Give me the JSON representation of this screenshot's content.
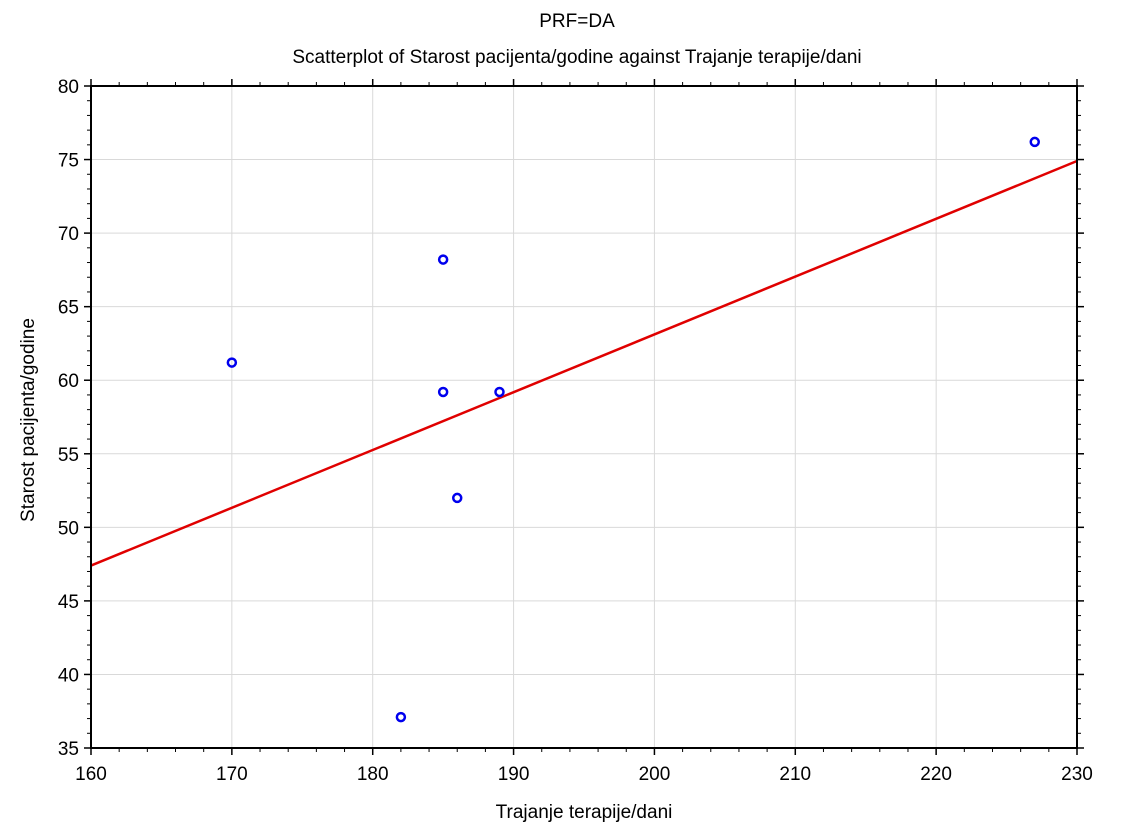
{
  "chart_data": {
    "type": "scatter",
    "title": "PRF=DA",
    "subtitle": "Scatterplot of Starost pacijenta/godine against Trajanje terapije/dani",
    "xlabel": "Trajanje terapije/dani",
    "ylabel": "Starost pacijenta/godine",
    "xlim": [
      160,
      230
    ],
    "ylim": [
      35,
      80
    ],
    "xticks": [
      160,
      170,
      180,
      190,
      200,
      210,
      220,
      230
    ],
    "yticks": [
      35,
      40,
      45,
      50,
      55,
      60,
      65,
      70,
      75,
      80
    ],
    "grid": true,
    "series": [
      {
        "points": [
          {
            "x": 170,
            "y": 61.2
          },
          {
            "x": 185,
            "y": 68.2
          },
          {
            "x": 185,
            "y": 59.2
          },
          {
            "x": 189,
            "y": 59.2
          },
          {
            "x": 186,
            "y": 52.0
          },
          {
            "x": 182,
            "y": 37.1
          },
          {
            "x": 227,
            "y": 76.2
          }
        ]
      }
    ],
    "fit_line": {
      "type": "linear",
      "x": [
        160,
        230
      ],
      "y": [
        47.4,
        74.9
      ]
    },
    "colors": {
      "points": "#0000ee",
      "fit_line": "#e00000",
      "grid": "#d9d9d9",
      "frame": "#000000"
    }
  }
}
